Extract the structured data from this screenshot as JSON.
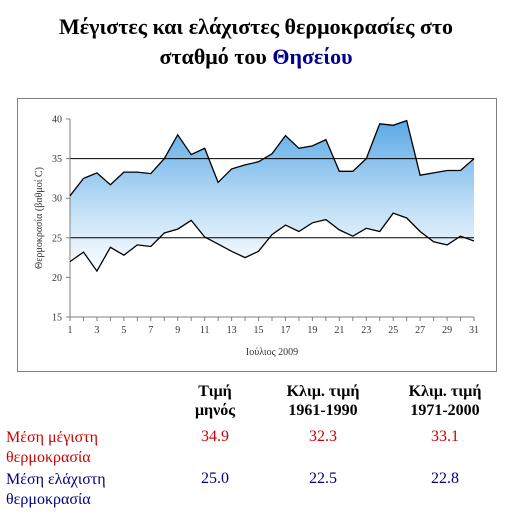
{
  "title": {
    "line1": "Μέγιστες και ελάχιστες θερμοκρασίες στο",
    "line2_prefix": "σταθμό του ",
    "line2_station": "Θησείου"
  },
  "chart_data": {
    "type": "area",
    "xlabel": "Ιούλιος 2009",
    "ylabel": "Θερμοκρασία (βαθμοί C)",
    "ylim": [
      15,
      40
    ],
    "yticks": [
      15,
      20,
      25,
      30,
      35,
      40
    ],
    "xlim": [
      1,
      31
    ],
    "xticks": [
      1,
      3,
      5,
      7,
      9,
      11,
      13,
      15,
      17,
      19,
      21,
      23,
      25,
      27,
      29,
      31
    ],
    "grid": false,
    "reference_lines": [
      35,
      25
    ],
    "fill_colors": {
      "top": "#5aa9e6",
      "bottom": "#ffffff"
    },
    "x": [
      1,
      2,
      3,
      4,
      5,
      6,
      7,
      8,
      9,
      10,
      11,
      12,
      13,
      14,
      15,
      16,
      17,
      18,
      19,
      20,
      21,
      22,
      23,
      24,
      25,
      26,
      27,
      28,
      29,
      30,
      31
    ],
    "series": [
      {
        "values": [
          30.3,
          32.5,
          33.2,
          31.7,
          33.3,
          33.3,
          33.1,
          35.0,
          38.0,
          35.5,
          36.3,
          32.0,
          33.7,
          34.2,
          34.6,
          35.6,
          37.9,
          36.3,
          36.6,
          37.4,
          33.4,
          33.4,
          35.0,
          39.4,
          39.2,
          39.8,
          32.9,
          33.2,
          33.5,
          33.5,
          35.0
        ],
        "color": "#000000"
      },
      {
        "values": [
          22.0,
          23.2,
          20.8,
          23.8,
          22.8,
          24.1,
          23.9,
          25.6,
          26.1,
          27.2,
          25.1,
          24.2,
          23.3,
          22.5,
          23.3,
          25.4,
          26.6,
          25.8,
          26.9,
          27.3,
          26.0,
          25.2,
          26.2,
          25.8,
          28.1,
          27.5,
          25.8,
          24.5,
          24.1,
          25.2,
          24.6
        ],
        "color": "#000000"
      }
    ]
  },
  "table": {
    "headers": [
      {
        "line1": "Τιμή",
        "line2": "μηνός"
      },
      {
        "line1": "Κλιμ. τιμή",
        "line2": "1961-1990"
      },
      {
        "line1": "Κλιμ. τιμή",
        "line2": "1971-2000"
      }
    ],
    "rows": [
      {
        "label_line1": "Μέση μέγιστη",
        "label_line2": "θερμοκρασία",
        "values": [
          "34.9",
          "32.3",
          "33.1"
        ],
        "color": "#cc0000"
      },
      {
        "label_line1": "Μέση ελάχιστη",
        "label_line2": "θερμοκρασία",
        "values": [
          "25.0",
          "22.5",
          "22.8"
        ],
        "color": "#000080"
      }
    ]
  }
}
